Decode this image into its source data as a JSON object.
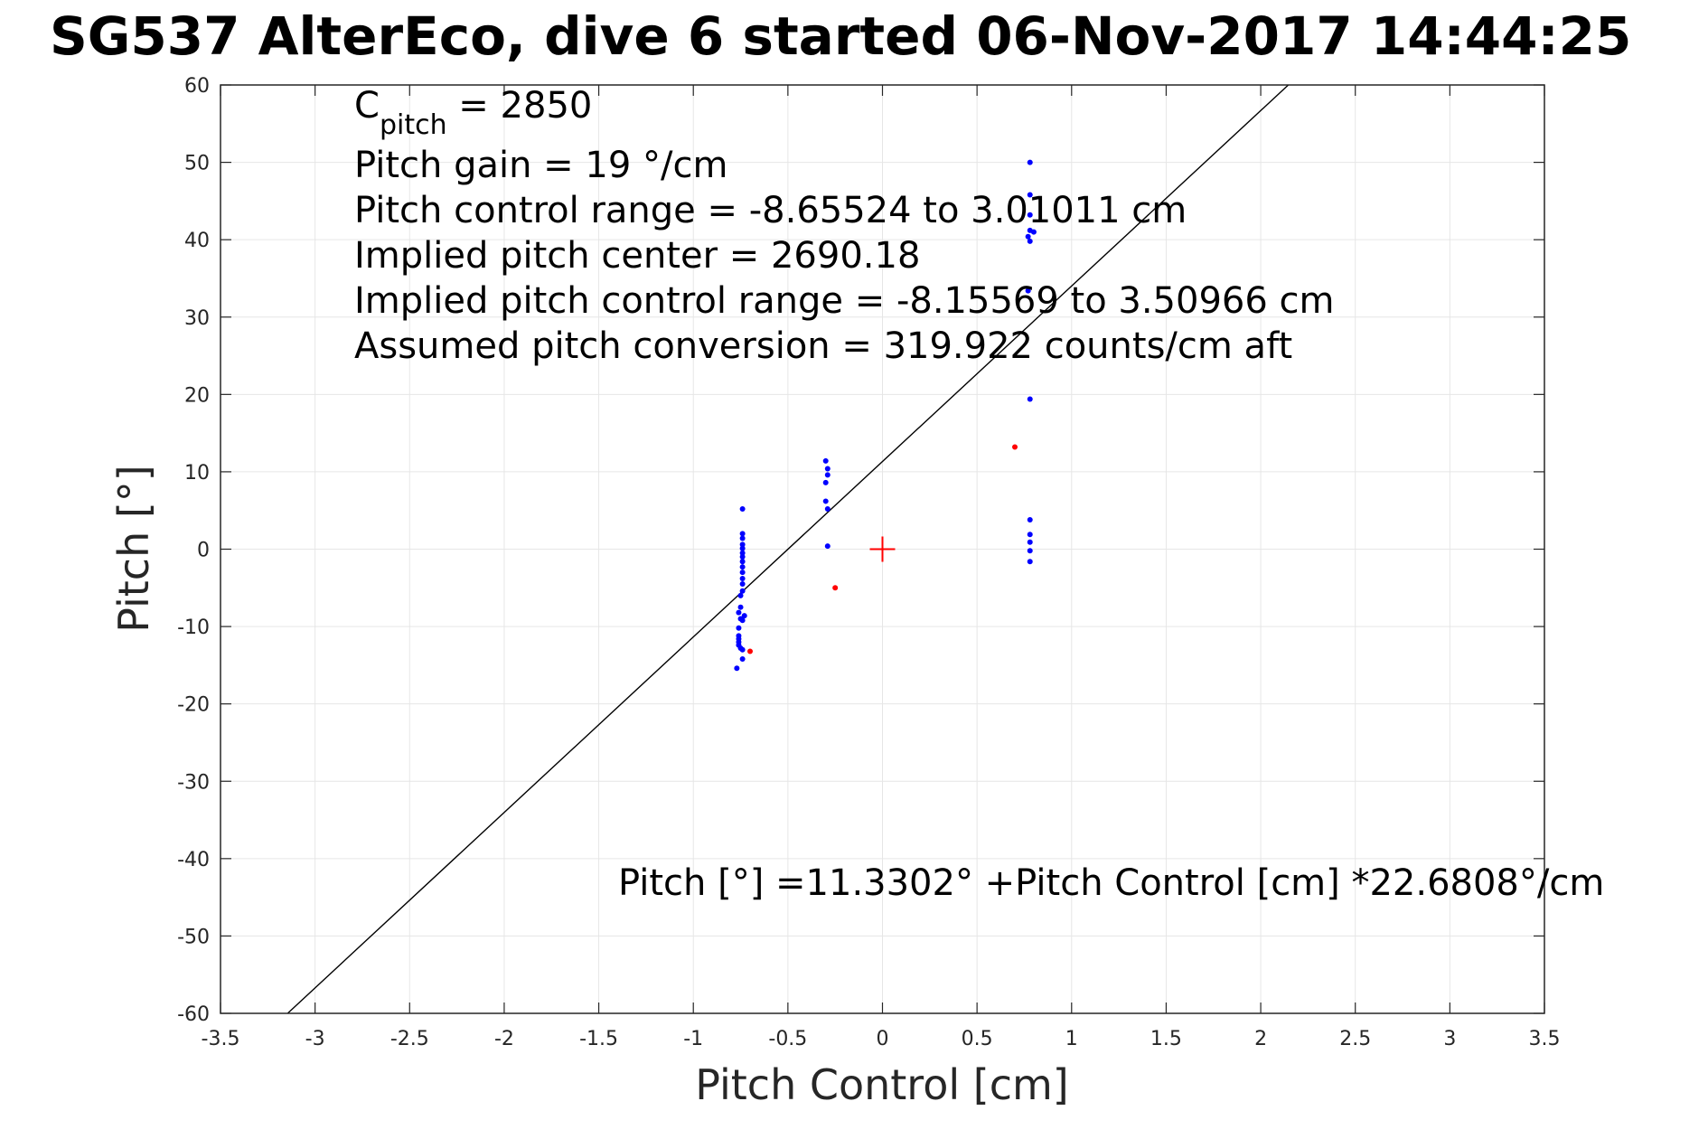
{
  "chart_data": {
    "type": "scatter",
    "title": "SG537 AlterEco, dive 6 started 06-Nov-2017 14:44:25",
    "xlabel": "Pitch Control [cm]",
    "ylabel": "Pitch [°]",
    "xlim": [
      -3.5,
      3.5
    ],
    "ylim": [
      -60,
      60
    ],
    "x_ticks": [
      -3.5,
      -3,
      -2.5,
      -2,
      -1.5,
      -1,
      -0.5,
      0,
      0.5,
      1,
      1.5,
      2,
      2.5,
      3,
      3.5
    ],
    "x_tick_labels": [
      "-3.5",
      "-3",
      "-2.5",
      "-2",
      "-1.5",
      "-1",
      "-0.5",
      "0",
      "0.5",
      "1",
      "1.5",
      "2",
      "2.5",
      "3",
      "3.5"
    ],
    "y_ticks": [
      -60,
      -50,
      -40,
      -30,
      -20,
      -10,
      0,
      10,
      20,
      30,
      40,
      50,
      60
    ],
    "y_tick_labels": [
      "-60",
      "-50",
      "-40",
      "-30",
      "-20",
      "-10",
      "0",
      "10",
      "20",
      "30",
      "40",
      "50",
      "60"
    ],
    "grid": true,
    "annotations": {
      "c_pitch_main": "C",
      "c_pitch_sub": "pitch",
      "c_pitch_value": " = 2850",
      "pitch_gain": "Pitch gain = 19 °/cm",
      "pitch_control_range": "Pitch control range = -8.65524 to 3.01011 cm",
      "implied_pitch_center": "Implied pitch center = 2690.18",
      "implied_pitch_control_range": "Implied pitch control range = -8.15569 to 3.50966 cm",
      "assumed_pitch_conversion": "Assumed pitch conversion = 319.922 counts/cm aft",
      "fit_equation": "Pitch [°] =11.3302° +Pitch Control [cm] *22.6808°/cm"
    },
    "fit_line": {
      "intercept": 11.3302,
      "slope": 22.6808,
      "color": "#000000"
    },
    "center_marker": {
      "x": 0,
      "y": 0,
      "color": "#ff0000",
      "shape": "plus"
    },
    "series": [
      {
        "color": "#0000ff",
        "points": [
          [
            -0.74,
            5.2
          ],
          [
            -0.74,
            2.0
          ],
          [
            -0.74,
            1.4
          ],
          [
            -0.74,
            0.6
          ],
          [
            -0.74,
            0.1
          ],
          [
            -0.74,
            -0.5
          ],
          [
            -0.74,
            -1.0
          ],
          [
            -0.74,
            -1.6
          ],
          [
            -0.74,
            -2.3
          ],
          [
            -0.74,
            -3.0
          ],
          [
            -0.74,
            -3.8
          ],
          [
            -0.74,
            -4.5
          ],
          [
            -0.74,
            -5.4
          ],
          [
            -0.75,
            -6.0
          ],
          [
            -0.75,
            -7.5
          ],
          [
            -0.76,
            -8.2
          ],
          [
            -0.73,
            -8.6
          ],
          [
            -0.75,
            -9.0
          ],
          [
            -0.74,
            -9.2
          ],
          [
            -0.76,
            -10.2
          ],
          [
            -0.76,
            -11.2
          ],
          [
            -0.76,
            -11.6
          ],
          [
            -0.76,
            -12.0
          ],
          [
            -0.76,
            -12.4
          ],
          [
            -0.75,
            -12.8
          ],
          [
            -0.74,
            -13.0
          ],
          [
            -0.74,
            -14.2
          ],
          [
            -0.77,
            -15.4
          ],
          [
            -0.3,
            11.4
          ],
          [
            -0.29,
            10.4
          ],
          [
            -0.29,
            9.6
          ],
          [
            -0.3,
            8.6
          ],
          [
            -0.3,
            6.2
          ],
          [
            -0.29,
            5.2
          ],
          [
            -0.29,
            0.4
          ],
          [
            0.78,
            50.0
          ],
          [
            0.78,
            45.8
          ],
          [
            0.78,
            43.2
          ],
          [
            0.78,
            41.2
          ],
          [
            0.8,
            41.0
          ],
          [
            0.77,
            40.4
          ],
          [
            0.78,
            39.8
          ],
          [
            0.77,
            33.4
          ],
          [
            0.78,
            19.4
          ],
          [
            0.78,
            3.8
          ],
          [
            0.78,
            1.9
          ],
          [
            0.78,
            0.9
          ],
          [
            0.78,
            -0.2
          ],
          [
            0.78,
            -1.6
          ]
        ]
      },
      {
        "color": "#ff0000",
        "points": [
          [
            -0.7,
            -13.2
          ],
          [
            -0.25,
            -5.0
          ],
          [
            0.7,
            13.2
          ]
        ]
      }
    ]
  }
}
